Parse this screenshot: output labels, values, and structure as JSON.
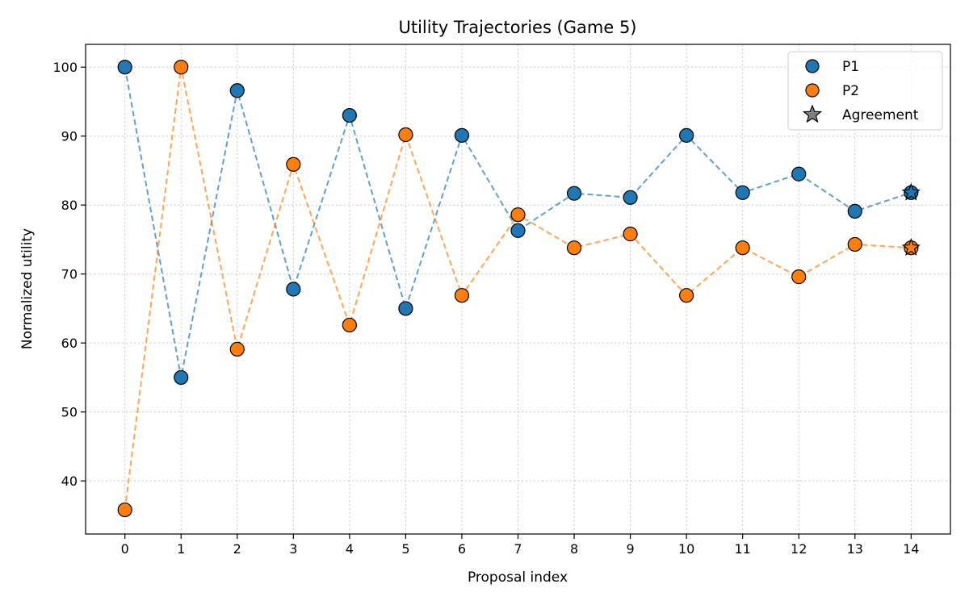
{
  "chart_data": {
    "type": "line",
    "title": "Utility Trajectories (Game 5)",
    "xlabel": "Proposal index",
    "ylabel": "Normalized utility",
    "x": [
      0,
      1,
      2,
      3,
      4,
      5,
      6,
      7,
      8,
      9,
      10,
      11,
      12,
      13,
      14
    ],
    "xticks": [
      "0",
      "1",
      "2",
      "3",
      "4",
      "5",
      "6",
      "7",
      "8",
      "9",
      "10",
      "11",
      "12",
      "13",
      "14"
    ],
    "yticks": [
      "40",
      "50",
      "60",
      "70",
      "80",
      "90",
      "100"
    ],
    "ylim": [
      32.3,
      103.3
    ],
    "xlim": [
      -0.7,
      14.7
    ],
    "grid": true,
    "line_style": "dashed",
    "legend_position": "top-right",
    "series": [
      {
        "name": "P1",
        "color": "#1f77b4",
        "values": [
          100,
          55,
          96.6,
          67.8,
          93,
          65,
          90.1,
          76.3,
          81.7,
          81.1,
          90.1,
          81.8,
          84.5,
          79.1,
          81.8
        ]
      },
      {
        "name": "P2",
        "color": "#ff7f0e",
        "values": [
          35.8,
          100,
          59.1,
          85.9,
          62.6,
          90.2,
          66.9,
          78.6,
          73.8,
          75.8,
          66.9,
          73.8,
          69.6,
          74.3,
          73.8
        ]
      }
    ],
    "agreement": {
      "name": "Agreement",
      "color": "#808080",
      "x": 14,
      "values": [
        81.8,
        73.8
      ]
    }
  }
}
